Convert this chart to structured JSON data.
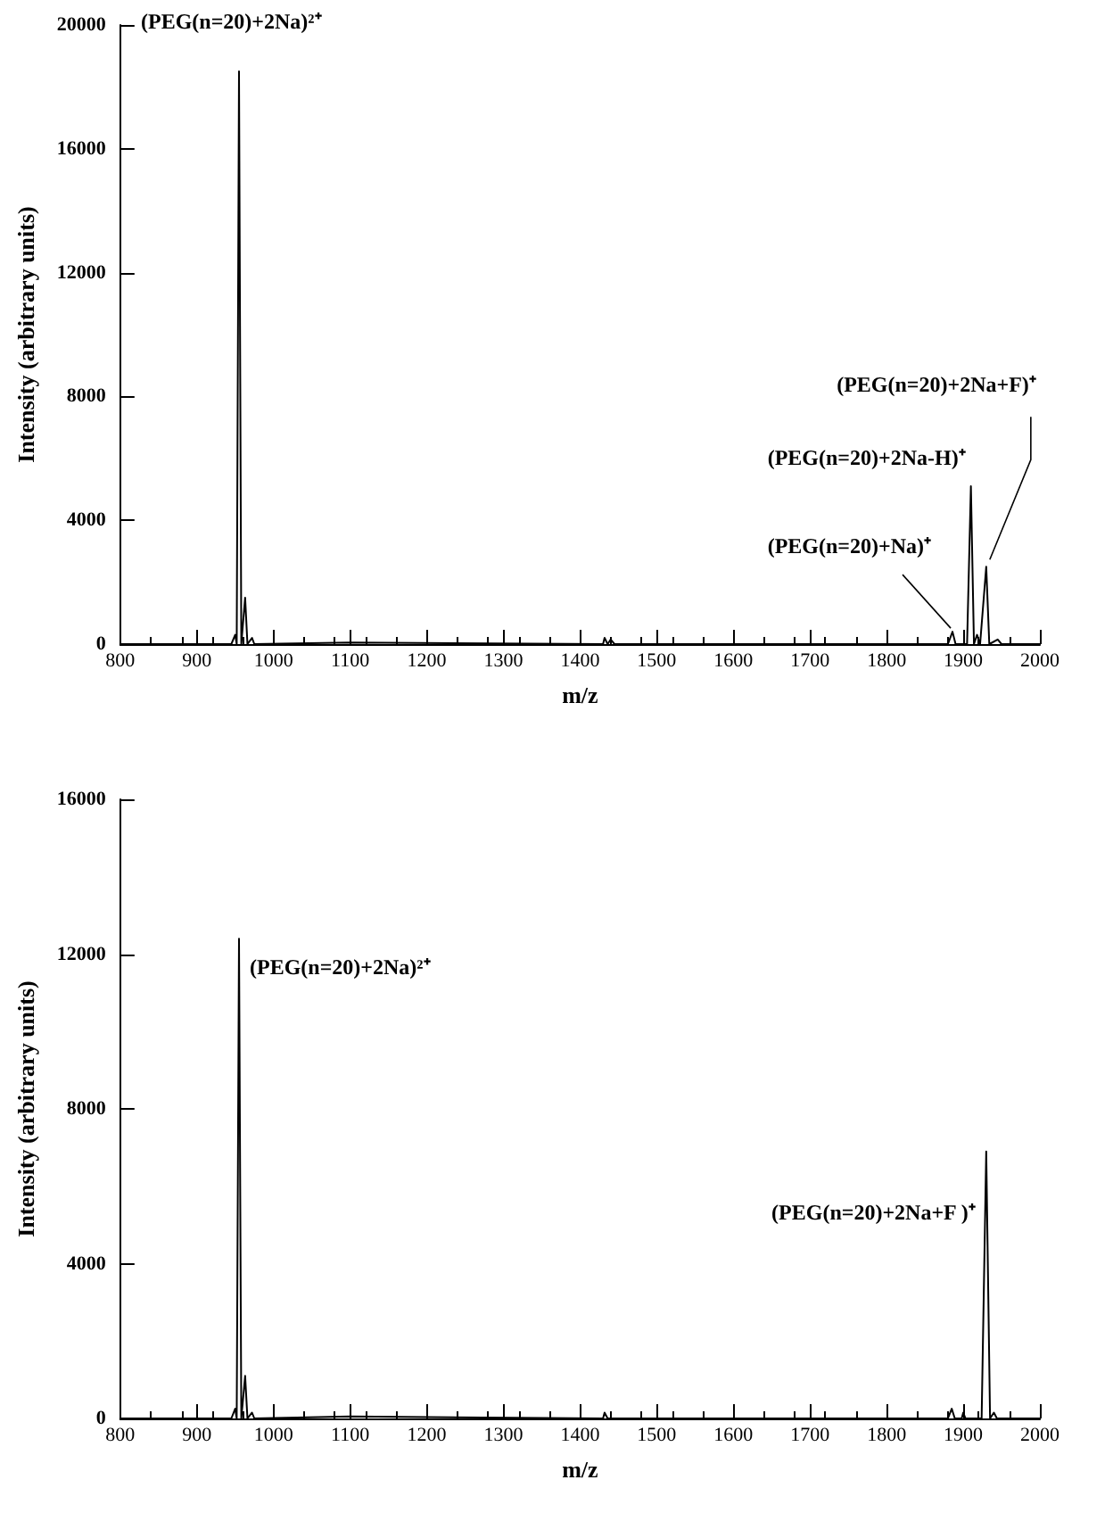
{
  "chart_data": [
    {
      "type": "line",
      "xlabel": "m/z",
      "ylabel": "Intensity (arbitrary units)",
      "xlim": [
        800,
        2000
      ],
      "xticks": [
        800,
        900,
        1000,
        1100,
        1200,
        1300,
        1400,
        1500,
        1600,
        1700,
        1800,
        1900,
        2000
      ],
      "ylim": [
        0,
        20000
      ],
      "yticks": [
        0,
        4000,
        8000,
        12000,
        16000,
        20000
      ],
      "series": [
        {
          "color": "#000000",
          "x": [
            800,
            900,
            945,
            950,
            952,
            955,
            958,
            963,
            966,
            972,
            975,
            1100,
            1430,
            1432,
            1436,
            1440,
            1445,
            1880,
            1886,
            1890,
            1905,
            1910,
            1914,
            1918,
            1922,
            1930,
            1934,
            1945,
            1950,
            2000
          ],
          "values": [
            0,
            0,
            0,
            300,
            0,
            18500,
            0,
            1500,
            0,
            200,
            0,
            50,
            0,
            200,
            0,
            150,
            0,
            0,
            400,
            0,
            0,
            5100,
            0,
            300,
            0,
            2500,
            0,
            150,
            0,
            0
          ]
        }
      ],
      "annotations": [
        {
          "text": "(PEG(n=20)+2Na)²⁺",
          "x": 955,
          "y": 18500
        },
        {
          "text": "(PEG(n=20)+Na)⁺",
          "x": 1886,
          "y": 400
        },
        {
          "text": "(PEG(n=20)+2Na-H)⁺",
          "x": 1910,
          "y": 5100
        },
        {
          "text": "(PEG(n=20)+2Na+F)⁺",
          "x": 1930,
          "y": 2500
        }
      ]
    },
    {
      "type": "line",
      "xlabel": "m/z",
      "ylabel": "Intensity (arbitrary units)",
      "xlim": [
        800,
        2000
      ],
      "xticks": [
        800,
        900,
        1000,
        1100,
        1200,
        1300,
        1400,
        1500,
        1600,
        1700,
        1800,
        1900,
        2000
      ],
      "ylim": [
        0,
        16000
      ],
      "yticks": [
        0,
        4000,
        8000,
        12000,
        16000
      ],
      "series": [
        {
          "color": "#000000",
          "x": [
            800,
            900,
            945,
            950,
            952,
            955,
            958,
            963,
            966,
            972,
            975,
            1100,
            1430,
            1432,
            1436,
            1880,
            1885,
            1889,
            1898,
            1900,
            1903,
            1924,
            1930,
            1935,
            1940,
            1944,
            2000
          ],
          "values": [
            0,
            0,
            0,
            250,
            0,
            12400,
            0,
            1100,
            0,
            150,
            0,
            50,
            0,
            150,
            0,
            0,
            250,
            0,
            0,
            150,
            0,
            0,
            6900,
            0,
            150,
            0,
            0
          ]
        }
      ],
      "annotations": [
        {
          "text": "(PEG(n=20)+2Na)²⁺",
          "x": 955,
          "y": 12400
        },
        {
          "text": "(PEG(n=20)+2Na+F )⁺",
          "x": 1930,
          "y": 6900
        }
      ]
    }
  ]
}
